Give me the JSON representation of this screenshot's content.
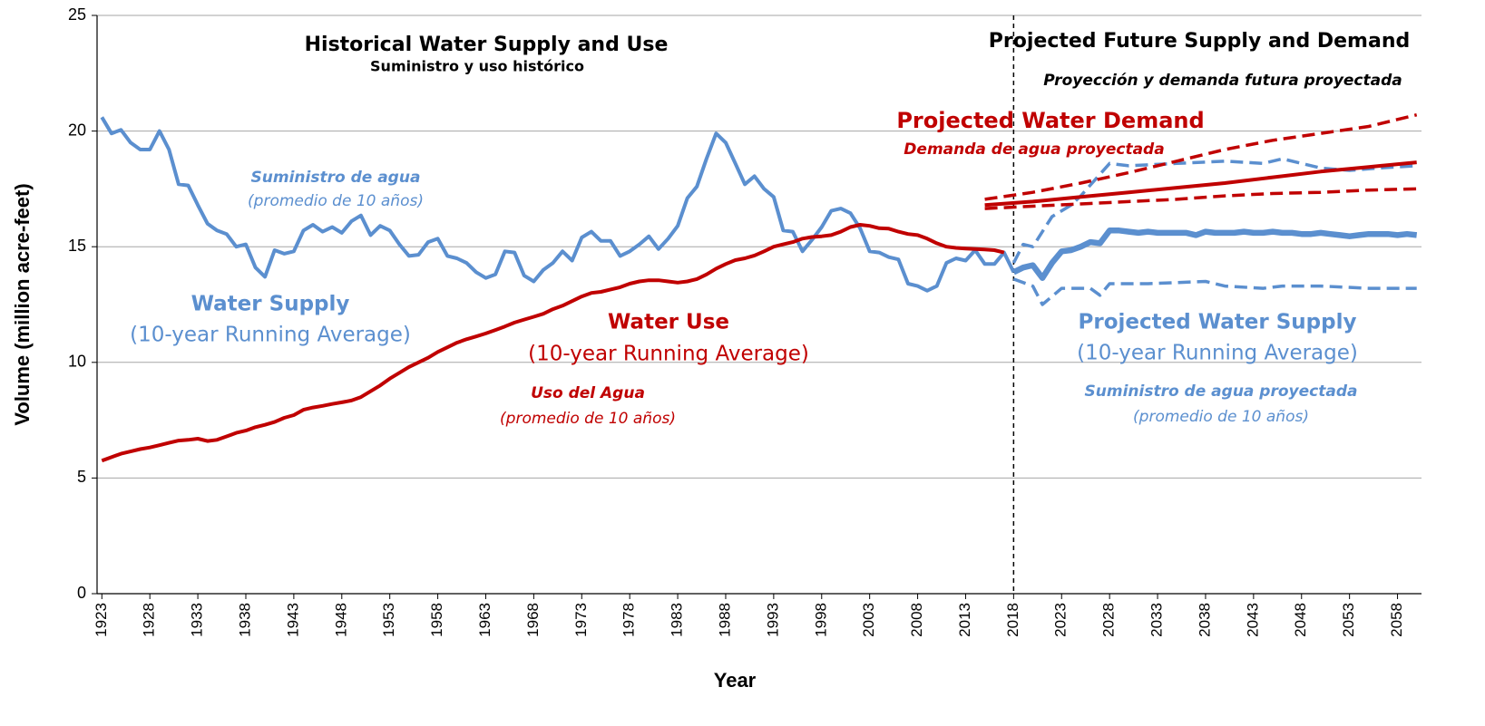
{
  "chart_data": {
    "type": "line",
    "xlabel": "Year",
    "ylabel": "Volume (million acre-feet)",
    "xlim": [
      1922.5,
      2060.5
    ],
    "ylim": [
      0,
      25
    ],
    "xticks": [
      1923,
      1928,
      1933,
      1938,
      1943,
      1948,
      1953,
      1958,
      1963,
      1968,
      1973,
      1978,
      1983,
      1988,
      1993,
      1998,
      2003,
      2008,
      2013,
      2018,
      2023,
      2028,
      2033,
      2038,
      2043,
      2048,
      2053,
      2058
    ],
    "yticks": [
      0,
      5,
      10,
      15,
      20,
      25
    ],
    "grid": true,
    "reference_line": {
      "x": 2018
    },
    "series": [
      {
        "color": "#5b8fcf",
        "line_style": "solid",
        "x": [
          1923,
          1924,
          1925,
          1926,
          1927,
          1928,
          1929,
          1930,
          1931,
          1932,
          1933,
          1934,
          1935,
          1936,
          1937,
          1938,
          1939,
          1940,
          1941,
          1942,
          1943,
          1944,
          1945,
          1946,
          1947,
          1948,
          1949,
          1950,
          1951,
          1952,
          1953,
          1954,
          1955,
          1956,
          1957,
          1958,
          1959,
          1960,
          1961,
          1962,
          1963,
          1964,
          1965,
          1966,
          1967,
          1968,
          1969,
          1970,
          1971,
          1972,
          1973,
          1974,
          1975,
          1976,
          1977,
          1978,
          1979,
          1980,
          1981,
          1982,
          1983,
          1984,
          1985,
          1986,
          1987,
          1988,
          1989,
          1990,
          1991,
          1992,
          1993,
          1994,
          1995,
          1996,
          1997,
          1998,
          1999,
          2000,
          2001,
          2002,
          2003,
          2004,
          2005,
          2006,
          2007,
          2008,
          2009,
          2010,
          2011,
          2012,
          2013,
          2014,
          2015,
          2016,
          2017,
          2018
        ],
        "values": [
          20.6,
          19.9,
          20.05,
          19.5,
          19.2,
          19.2,
          20.0,
          19.2,
          17.7,
          17.65,
          16.8,
          16.0,
          15.7,
          15.55,
          15.0,
          15.1,
          14.1,
          13.7,
          14.85,
          14.7,
          14.8,
          15.7,
          15.95,
          15.65,
          15.85,
          15.6,
          16.1,
          16.35,
          15.5,
          15.9,
          15.7,
          15.1,
          14.6,
          14.65,
          15.2,
          15.35,
          14.6,
          14.5,
          14.3,
          13.9,
          13.65,
          13.8,
          14.8,
          14.75,
          13.75,
          13.5,
          14.0,
          14.3,
          14.8,
          14.4,
          15.4,
          15.65,
          15.25,
          15.25,
          14.6,
          14.8,
          15.1,
          15.45,
          14.9,
          15.35,
          15.9,
          17.1,
          17.6,
          18.8,
          19.9,
          19.5,
          18.6,
          17.7,
          18.05,
          17.5,
          17.15,
          15.7,
          15.65,
          14.8,
          15.3,
          15.85,
          16.55,
          16.65,
          16.45,
          15.8,
          14.8,
          14.75,
          14.55,
          14.45,
          13.4,
          13.3,
          13.1,
          13.3,
          14.3,
          14.5,
          14.4,
          14.85,
          14.25,
          14.25,
          14.75,
          13.9
        ]
      },
      {
        "color": "#c00000",
        "line_style": "solid",
        "x": [
          1923,
          1924,
          1925,
          1926,
          1927,
          1928,
          1929,
          1930,
          1931,
          1932,
          1933,
          1934,
          1935,
          1936,
          1937,
          1938,
          1939,
          1940,
          1941,
          1942,
          1943,
          1944,
          1945,
          1946,
          1947,
          1948,
          1949,
          1950,
          1951,
          1952,
          1953,
          1954,
          1955,
          1956,
          1957,
          1958,
          1959,
          1960,
          1961,
          1962,
          1963,
          1964,
          1965,
          1966,
          1967,
          1968,
          1969,
          1970,
          1971,
          1972,
          1973,
          1974,
          1975,
          1976,
          1977,
          1978,
          1979,
          1980,
          1981,
          1982,
          1983,
          1984,
          1985,
          1986,
          1987,
          1988,
          1989,
          1990,
          1991,
          1992,
          1993,
          1994,
          1995,
          1996,
          1997,
          1998,
          1999,
          2000,
          2001,
          2002,
          2003,
          2004,
          2005,
          2006,
          2007,
          2008,
          2009,
          2010,
          2011,
          2012,
          2013,
          2014,
          2015,
          2016,
          2017
        ],
        "values": [
          5.75,
          5.9,
          6.05,
          6.15,
          6.25,
          6.32,
          6.42,
          6.52,
          6.62,
          6.65,
          6.7,
          6.6,
          6.65,
          6.8,
          6.95,
          7.05,
          7.2,
          7.3,
          7.42,
          7.6,
          7.72,
          7.95,
          8.05,
          8.12,
          8.2,
          8.27,
          8.35,
          8.5,
          8.75,
          9.0,
          9.3,
          9.55,
          9.8,
          10.0,
          10.2,
          10.45,
          10.65,
          10.85,
          11.0,
          11.12,
          11.25,
          11.4,
          11.55,
          11.72,
          11.85,
          11.97,
          12.1,
          12.3,
          12.45,
          12.65,
          12.85,
          13.0,
          13.05,
          13.15,
          13.25,
          13.4,
          13.5,
          13.55,
          13.55,
          13.5,
          13.45,
          13.5,
          13.6,
          13.8,
          14.05,
          14.25,
          14.42,
          14.5,
          14.62,
          14.8,
          15.0,
          15.1,
          15.2,
          15.35,
          15.42,
          15.45,
          15.5,
          15.65,
          15.85,
          15.95,
          15.9,
          15.8,
          15.78,
          15.65,
          15.55,
          15.5,
          15.35,
          15.15,
          15.0,
          14.95,
          14.92,
          14.9,
          14.88,
          14.85,
          14.75
        ]
      },
      {
        "color": "#5b8fcf",
        "line_style": "bold",
        "x": [
          2018,
          2019,
          2020,
          2021,
          2022,
          2023,
          2024,
          2025,
          2026,
          2027,
          2028,
          2029,
          2030,
          2031,
          2032,
          2033,
          2034,
          2035,
          2036,
          2037,
          2038,
          2039,
          2040,
          2041,
          2042,
          2043,
          2044,
          2045,
          2046,
          2047,
          2048,
          2049,
          2050,
          2051,
          2052,
          2053,
          2054,
          2055,
          2056,
          2057,
          2058,
          2059,
          2060
        ],
        "values": [
          13.9,
          14.1,
          14.2,
          13.65,
          14.3,
          14.8,
          14.85,
          15.0,
          15.2,
          15.15,
          15.7,
          15.7,
          15.65,
          15.6,
          15.65,
          15.6,
          15.6,
          15.6,
          15.6,
          15.5,
          15.65,
          15.6,
          15.6,
          15.6,
          15.65,
          15.6,
          15.6,
          15.65,
          15.6,
          15.6,
          15.55,
          15.55,
          15.6,
          15.55,
          15.5,
          15.45,
          15.5,
          15.55,
          15.55,
          15.55,
          15.5,
          15.55,
          15.5
        ]
      },
      {
        "color": "#5b8fcf",
        "line_style": "dashed",
        "x": [
          2018,
          2019,
          2020,
          2022,
          2024,
          2025,
          2028,
          2030,
          2035,
          2040,
          2044,
          2046,
          2048,
          2050,
          2053,
          2056,
          2060
        ],
        "values": [
          14.3,
          15.1,
          15.0,
          16.3,
          16.8,
          17.2,
          18.6,
          18.5,
          18.6,
          18.7,
          18.6,
          18.8,
          18.6,
          18.4,
          18.3,
          18.4,
          18.5
        ]
      },
      {
        "color": "#5b8fcf",
        "line_style": "dashed",
        "x": [
          2018,
          2020,
          2021,
          2023,
          2026,
          2027,
          2028,
          2032,
          2038,
          2040,
          2044,
          2046,
          2050,
          2055,
          2060
        ],
        "values": [
          13.6,
          13.3,
          12.5,
          13.2,
          13.2,
          12.9,
          13.4,
          13.4,
          13.5,
          13.3,
          13.2,
          13.3,
          13.3,
          13.2,
          13.2
        ]
      },
      {
        "color": "#c00000",
        "line_style": "solid",
        "x": [
          2015,
          2020,
          2025,
          2030,
          2035,
          2040,
          2045,
          2050,
          2055,
          2060
        ],
        "values": [
          16.8,
          16.95,
          17.15,
          17.35,
          17.55,
          17.75,
          18.0,
          18.25,
          18.45,
          18.65
        ]
      },
      {
        "color": "#c00000",
        "line_style": "dashed",
        "x": [
          2015,
          2020,
          2025,
          2030,
          2035,
          2040,
          2045,
          2050,
          2055,
          2060
        ],
        "values": [
          17.05,
          17.35,
          17.75,
          18.2,
          18.7,
          19.2,
          19.6,
          19.9,
          20.2,
          20.7
        ]
      },
      {
        "color": "#c00000",
        "line_style": "dashed",
        "x": [
          2015,
          2020,
          2025,
          2030,
          2035,
          2040,
          2045,
          2050,
          2055,
          2060
        ],
        "values": [
          16.65,
          16.75,
          16.85,
          16.95,
          17.05,
          17.2,
          17.3,
          17.35,
          17.45,
          17.5
        ]
      }
    ],
    "annotations": [
      "Historical Water Supply and Use",
      "Suministro y uso histórico",
      "Projected Future Supply and Demand",
      "Proyección y demanda futura proyectada",
      "Projected Water Demand",
      "Demanda de agua proyectada",
      "Suministro de agua",
      "(promedio de 10 años)",
      "Water Supply",
      "(10-year Running Average)",
      "Water Use",
      "(10-year Running Average)",
      "Uso del Agua",
      "(promedio de 10 años)",
      "Projected Water Supply",
      "(10-year Running Average)",
      "Suministro de agua proyectada",
      "(promedio de 10 años)"
    ]
  }
}
